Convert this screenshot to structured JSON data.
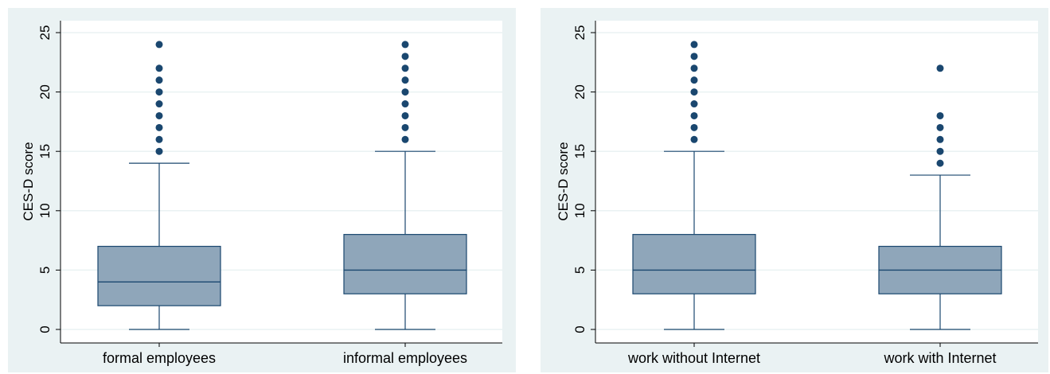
{
  "colors": {
    "panel_bg": "#eaf2f3",
    "plot_bg": "#ffffff",
    "grid": "#eaf2f3",
    "box_fill": "#8fa6ba",
    "box_stroke": "#1a476f",
    "whisker": "#1a476f",
    "outlier": "#1a476f",
    "axis": "#000000"
  },
  "chart_data": [
    {
      "type": "box",
      "title": "",
      "ylabel": "CES-D score",
      "xlabel": "",
      "ylim": [
        0,
        25
      ],
      "yticks": [
        "0",
        "5",
        "10",
        "15",
        "20",
        "25"
      ],
      "grid": true,
      "categories": [
        "formal employees",
        "informal employees"
      ],
      "boxes": [
        {
          "name": "formal employees",
          "whisker_low": 0,
          "q1": 2,
          "median": 4,
          "q3": 7,
          "whisker_high": 14,
          "outliers": [
            15,
            16,
            17,
            18,
            19,
            20,
            21,
            22,
            24
          ]
        },
        {
          "name": "informal employees",
          "whisker_low": 0,
          "q1": 3,
          "median": 5,
          "q3": 8,
          "whisker_high": 15,
          "outliers": [
            16,
            17,
            18,
            19,
            20,
            21,
            22,
            23,
            24
          ]
        }
      ]
    },
    {
      "type": "box",
      "title": "",
      "ylabel": "CES-D score",
      "xlabel": "",
      "ylim": [
        0,
        25
      ],
      "yticks": [
        "0",
        "5",
        "10",
        "15",
        "20",
        "25"
      ],
      "grid": true,
      "categories": [
        "work without Internet",
        "work with Internet"
      ],
      "boxes": [
        {
          "name": "work without Internet",
          "whisker_low": 0,
          "q1": 3,
          "median": 5,
          "q3": 8,
          "whisker_high": 15,
          "outliers": [
            16,
            17,
            18,
            19,
            20,
            21,
            22,
            23,
            24
          ]
        },
        {
          "name": "work with Internet",
          "whisker_low": 0,
          "q1": 3,
          "median": 5,
          "q3": 7,
          "whisker_high": 13,
          "outliers": [
            14,
            15,
            16,
            17,
            18,
            22
          ]
        }
      ]
    }
  ]
}
